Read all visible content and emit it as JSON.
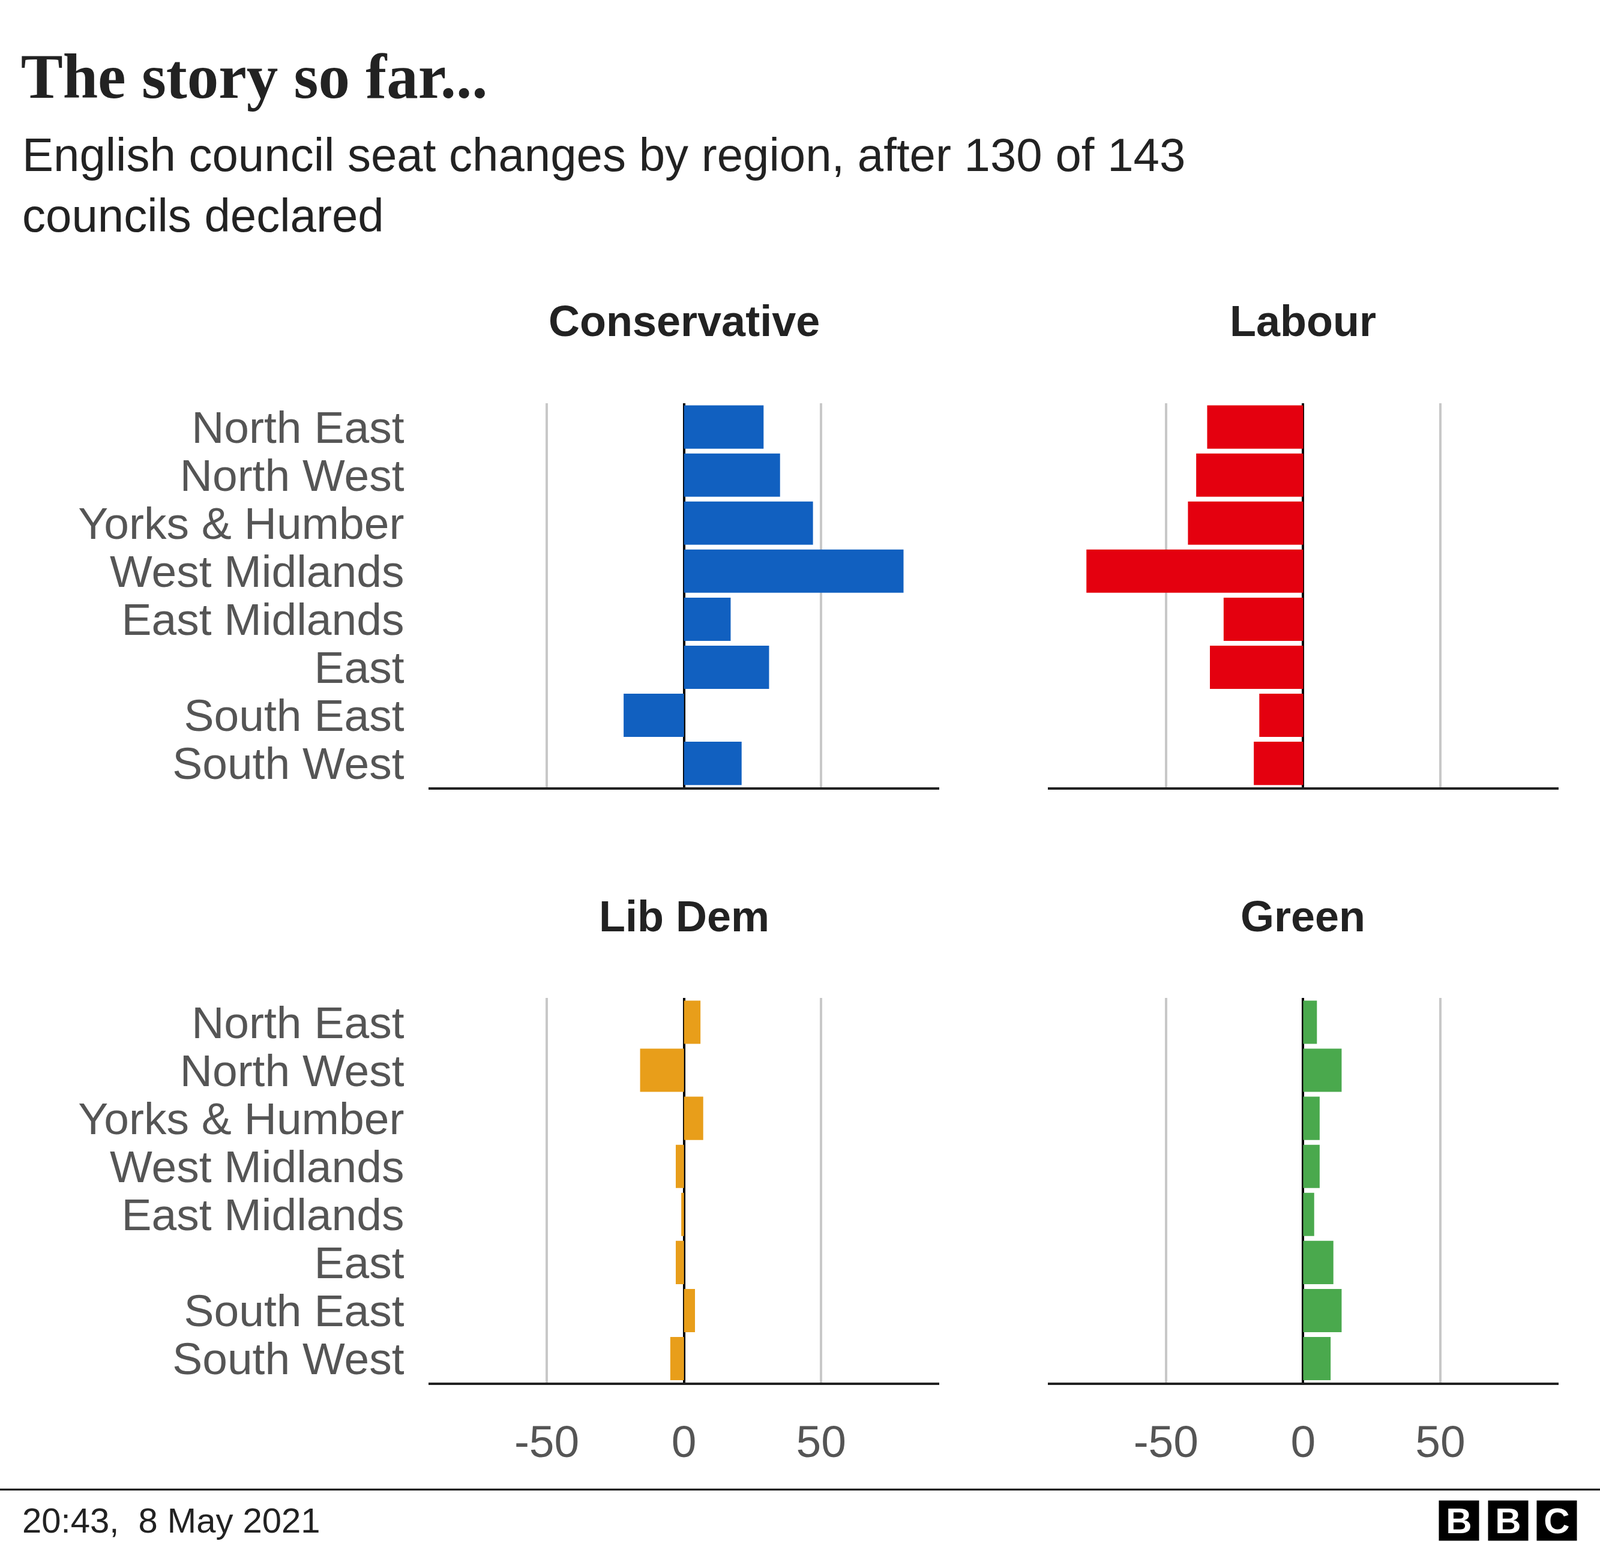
{
  "title": "The story so far...",
  "subtitle": "English council seat changes by region, after 130 of 143 councils declared",
  "footer": "20:43,  8 May 2021",
  "logo": "BBC",
  "chart_data": [
    {
      "type": "bar",
      "title": "Conservative",
      "orientation": "horizontal",
      "categories": [
        "North East",
        "North West",
        "Yorks & Humber",
        "West Midlands",
        "East Midlands",
        "East",
        "South East",
        "South West"
      ],
      "values": [
        29,
        35,
        47,
        80,
        17,
        31,
        -22,
        21
      ],
      "color": "#1160c0",
      "xlim": [
        -93,
        93
      ],
      "xticks": [
        -50,
        0,
        50
      ],
      "grid": true,
      "tick_labels": "y"
    },
    {
      "type": "bar",
      "title": "Labour",
      "orientation": "horizontal",
      "categories": [
        "North East",
        "North West",
        "Yorks & Humber",
        "West Midlands",
        "East Midlands",
        "East",
        "South East",
        "South West"
      ],
      "values": [
        -35,
        -39,
        -42,
        -79,
        -29,
        -34,
        -16,
        -18
      ],
      "color": "#e4000f",
      "xlim": [
        -93,
        93
      ],
      "xticks": [
        -50,
        0,
        50
      ],
      "grid": true,
      "tick_labels": false
    },
    {
      "type": "bar",
      "title": "Lib Dem",
      "orientation": "horizontal",
      "categories": [
        "North East",
        "North West",
        "Yorks & Humber",
        "West Midlands",
        "East Midlands",
        "East",
        "South East",
        "South West"
      ],
      "values": [
        6,
        -16,
        7,
        -3,
        -1,
        -3,
        4,
        -5
      ],
      "color": "#e89e1a",
      "xlim": [
        -93,
        93
      ],
      "xticks": [
        -50,
        0,
        50
      ],
      "grid": true
    },
    {
      "type": "bar",
      "title": "Green",
      "orientation": "horizontal",
      "categories": [
        "North East",
        "North West",
        "Yorks & Humber",
        "West Midlands",
        "East Midlands",
        "East",
        "South East",
        "South West"
      ],
      "values": [
        5,
        14,
        6,
        6,
        4,
        11,
        14,
        10
      ],
      "color": "#4aa94d",
      "xlim": [
        -93,
        93
      ],
      "xticks": [
        -50,
        0,
        50
      ],
      "grid": true,
      "tick_labels": "x"
    }
  ]
}
